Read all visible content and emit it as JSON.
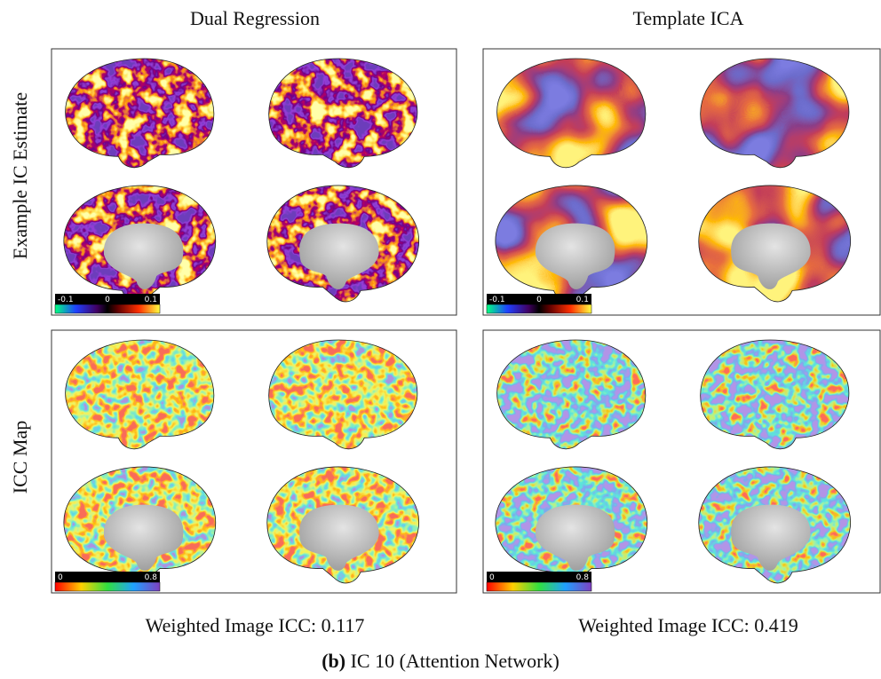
{
  "columns": [
    {
      "title": "Dual Regression",
      "icc_text": "Weighted Image ICC: 0.117"
    },
    {
      "title": "Template ICA",
      "icc_text": "Weighted Image ICC: 0.419"
    }
  ],
  "rows": [
    "Example IC Estimate",
    "ICC Map"
  ],
  "colorbars": {
    "ic": [
      "-0.1",
      "0",
      "0.1"
    ],
    "icc": [
      "0",
      "0.8"
    ]
  },
  "caption": {
    "label": "(b)",
    "text": "IC 10 (Attention Network)"
  }
}
